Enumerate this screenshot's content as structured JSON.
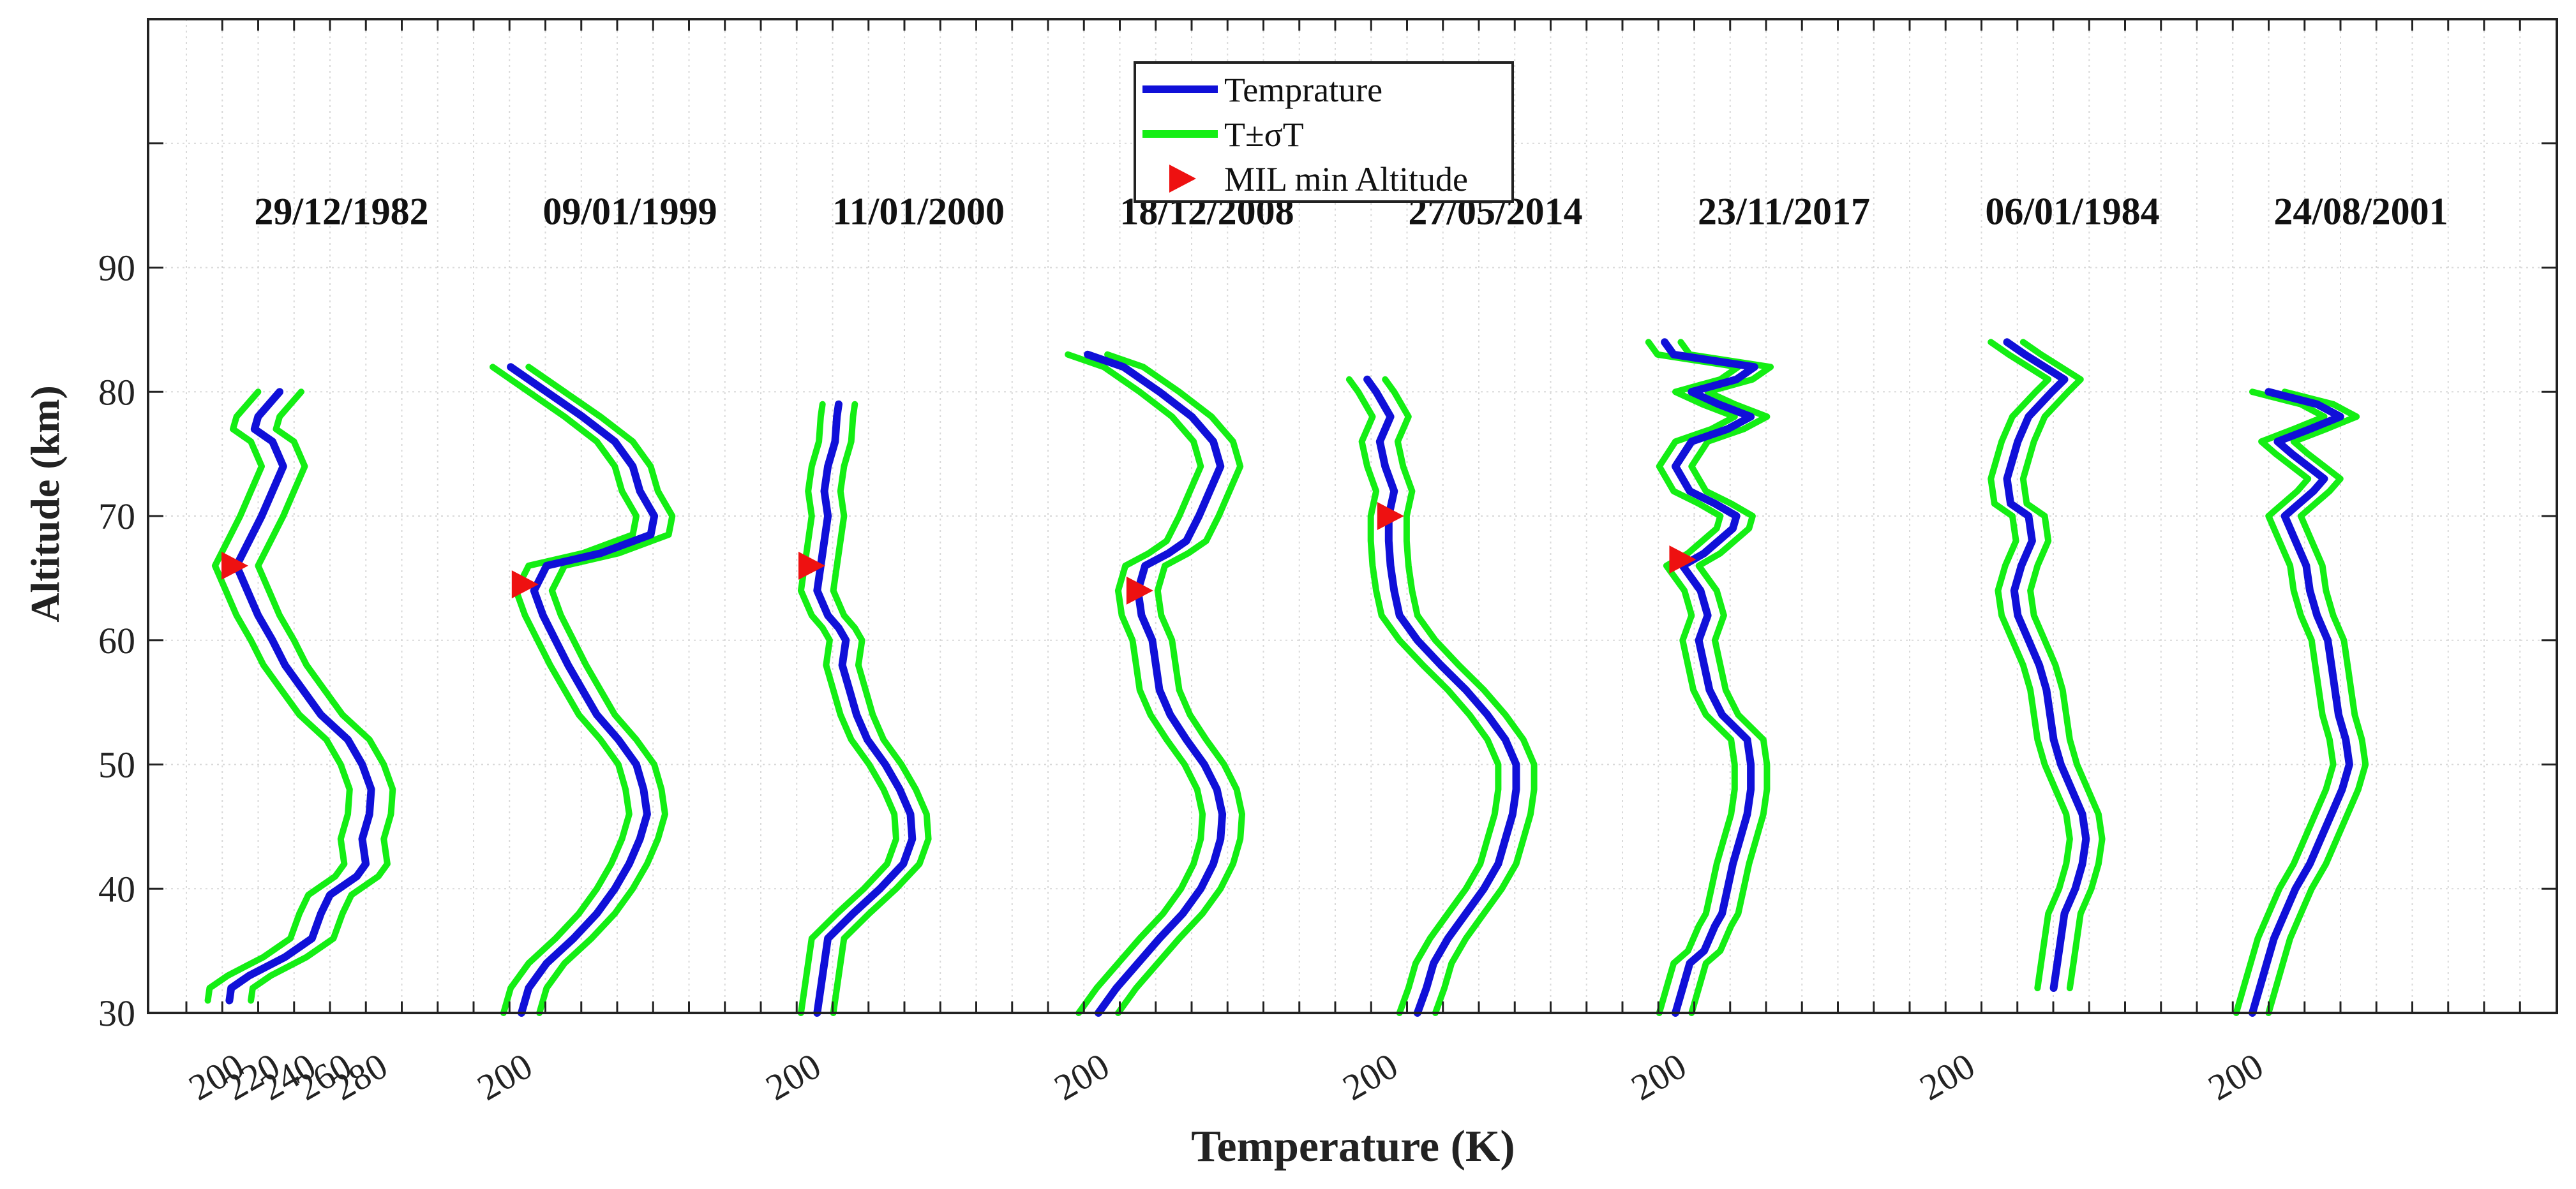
{
  "chart_data": {
    "type": "line",
    "xlabel": "Temperature (K)",
    "ylabel": "Altitude (km)",
    "ylim": [
      30,
      110
    ],
    "yticks": [
      30,
      40,
      50,
      60,
      70,
      80,
      90
    ],
    "panel_xlim": [
      180,
      340
    ],
    "first_panel_xticks": [
      200,
      220,
      240,
      260,
      280
    ],
    "legend": {
      "position": "top-center",
      "entries": [
        {
          "label": "Temprature",
          "kind": "line",
          "color": "#1010d8"
        },
        {
          "label": "T±σT",
          "kind": "line",
          "color": "#14ee14"
        },
        {
          "label": "MIL min Altitude",
          "kind": "marker",
          "color": "#ee1111"
        }
      ]
    },
    "colors": {
      "temperature": "#1010d8",
      "sigma": "#14ee14",
      "marker": "#ee1111",
      "grid": "#d9d9d9"
    },
    "panels": [
      {
        "date": "29/12/1982",
        "sigma_width": 12,
        "mil": [
          196,
          66
        ],
        "profile": [
          [
            194,
            31
          ],
          [
            195,
            32
          ],
          [
            205,
            33
          ],
          [
            225,
            34.5
          ],
          [
            240,
            36
          ],
          [
            245,
            38
          ],
          [
            250,
            39.5
          ],
          [
            265,
            41
          ],
          [
            270,
            42
          ],
          [
            268,
            44
          ],
          [
            272,
            46
          ],
          [
            273,
            48
          ],
          [
            268,
            50
          ],
          [
            260,
            52
          ],
          [
            245,
            54
          ],
          [
            235,
            56
          ],
          [
            225,
            58
          ],
          [
            218,
            60
          ],
          [
            210,
            62
          ],
          [
            204,
            64
          ],
          [
            198,
            66
          ],
          [
            205,
            68
          ],
          [
            212,
            70
          ],
          [
            218,
            72
          ],
          [
            224,
            74
          ],
          [
            218,
            76
          ],
          [
            208,
            77
          ],
          [
            210,
            78
          ],
          [
            222,
            80
          ]
        ]
      },
      {
        "date": "09/01/1999",
        "sigma_width": 10,
        "mil": [
          197,
          64.5
        ],
        "profile": [
          [
            196,
            30
          ],
          [
            200,
            32
          ],
          [
            210,
            34
          ],
          [
            225,
            36
          ],
          [
            238,
            38
          ],
          [
            248,
            40
          ],
          [
            256,
            42
          ],
          [
            262,
            44
          ],
          [
            266,
            46
          ],
          [
            264,
            48
          ],
          [
            260,
            50
          ],
          [
            250,
            52
          ],
          [
            238,
            54
          ],
          [
            230,
            56
          ],
          [
            222,
            58
          ],
          [
            215,
            60
          ],
          [
            208,
            62
          ],
          [
            203,
            64
          ],
          [
            210,
            66
          ],
          [
            240,
            67
          ],
          [
            268,
            68.5
          ],
          [
            270,
            70
          ],
          [
            262,
            72
          ],
          [
            258,
            74
          ],
          [
            248,
            76
          ],
          [
            230,
            78
          ],
          [
            210,
            80
          ],
          [
            190,
            82
          ]
        ]
      },
      {
        "date": "11/01/2000",
        "sigma_width": 9,
        "mil": [
          196,
          66
        ],
        "profile": [
          [
            200,
            30
          ],
          [
            202,
            32
          ],
          [
            204,
            34
          ],
          [
            206,
            36
          ],
          [
            220,
            38
          ],
          [
            235,
            40
          ],
          [
            248,
            42
          ],
          [
            253,
            44
          ],
          [
            252,
            46
          ],
          [
            246,
            48
          ],
          [
            238,
            50
          ],
          [
            228,
            52
          ],
          [
            222,
            54
          ],
          [
            218,
            56
          ],
          [
            214,
            58
          ],
          [
            216,
            60
          ],
          [
            212,
            61
          ],
          [
            206,
            62
          ],
          [
            200,
            64
          ],
          [
            202,
            66
          ],
          [
            204,
            68
          ],
          [
            206,
            70
          ],
          [
            204,
            72
          ],
          [
            206,
            74
          ],
          [
            210,
            76
          ],
          [
            211,
            78
          ],
          [
            212,
            79
          ]
        ]
      },
      {
        "date": "18/12/2008",
        "sigma_width": 11,
        "mil": [
          218,
          64
        ],
        "profile": [
          [
            196,
            30
          ],
          [
            206,
            32
          ],
          [
            218,
            34
          ],
          [
            230,
            36
          ],
          [
            243,
            38
          ],
          [
            253,
            40
          ],
          [
            260,
            42
          ],
          [
            264,
            44
          ],
          [
            265,
            46
          ],
          [
            262,
            48
          ],
          [
            255,
            50
          ],
          [
            245,
            52
          ],
          [
            236,
            54
          ],
          [
            230,
            56
          ],
          [
            228,
            58
          ],
          [
            226,
            60
          ],
          [
            220,
            62
          ],
          [
            218,
            64
          ],
          [
            222,
            66
          ],
          [
            235,
            67
          ],
          [
            245,
            68
          ],
          [
            252,
            70
          ],
          [
            258,
            72
          ],
          [
            264,
            74
          ],
          [
            260,
            76
          ],
          [
            248,
            78
          ],
          [
            230,
            80
          ],
          [
            210,
            82
          ],
          [
            190,
            83
          ]
        ]
      },
      {
        "date": "27/05/2014",
        "sigma_width": 10,
        "mil": [
          197,
          70
        ],
        "profile": [
          [
            213,
            30
          ],
          [
            218,
            32
          ],
          [
            222,
            34
          ],
          [
            230,
            36
          ],
          [
            240,
            38
          ],
          [
            250,
            40
          ],
          [
            258,
            42
          ],
          [
            262,
            44
          ],
          [
            266,
            46
          ],
          [
            268,
            48
          ],
          [
            268,
            50
          ],
          [
            262,
            52
          ],
          [
            252,
            54
          ],
          [
            240,
            56
          ],
          [
            226,
            58
          ],
          [
            213,
            60
          ],
          [
            203,
            62
          ],
          [
            200,
            64
          ],
          [
            198,
            66
          ],
          [
            197,
            68
          ],
          [
            197,
            70
          ],
          [
            200,
            72
          ],
          [
            195,
            74
          ],
          [
            192,
            76
          ],
          [
            198,
            78
          ],
          [
            190,
            80
          ],
          [
            185,
            81
          ]
        ]
      },
      {
        "date": "23/11/2017",
        "sigma_width": 9,
        "mil": [
          199,
          66.5
        ],
        "profile": [
          [
            196,
            30
          ],
          [
            200,
            32
          ],
          [
            204,
            34
          ],
          [
            212,
            35
          ],
          [
            218,
            37
          ],
          [
            222,
            38
          ],
          [
            225,
            40
          ],
          [
            228,
            42
          ],
          [
            232,
            44
          ],
          [
            236,
            46
          ],
          [
            238,
            48
          ],
          [
            238,
            50
          ],
          [
            236,
            52
          ],
          [
            222,
            54
          ],
          [
            215,
            56
          ],
          [
            212,
            58
          ],
          [
            209,
            60
          ],
          [
            214,
            62
          ],
          [
            210,
            64
          ],
          [
            200,
            66
          ],
          [
            212,
            67
          ],
          [
            228,
            69
          ],
          [
            230,
            70
          ],
          [
            218,
            71
          ],
          [
            204,
            72
          ],
          [
            196,
            74
          ],
          [
            205,
            76
          ],
          [
            225,
            77
          ],
          [
            238,
            78
          ],
          [
            220,
            79
          ],
          [
            205,
            80
          ],
          [
            230,
            81
          ],
          [
            240,
            82
          ],
          [
            195,
            83
          ],
          [
            190,
            84
          ]
        ]
      },
      {
        "date": "06/01/1984",
        "sigma_width": 9,
        "mil": null,
        "profile": [
          [
            246,
            32
          ],
          [
            248,
            34
          ],
          [
            252,
            38
          ],
          [
            258,
            40
          ],
          [
            262,
            42
          ],
          [
            264,
            44
          ],
          [
            262,
            46
          ],
          [
            256,
            48
          ],
          [
            250,
            50
          ],
          [
            246,
            52
          ],
          [
            244,
            54
          ],
          [
            242,
            56
          ],
          [
            238,
            58
          ],
          [
            232,
            60
          ],
          [
            226,
            62
          ],
          [
            224,
            64
          ],
          [
            228,
            66
          ],
          [
            234,
            68
          ],
          [
            232,
            70
          ],
          [
            222,
            71
          ],
          [
            220,
            73
          ],
          [
            226,
            76
          ],
          [
            232,
            78
          ],
          [
            245,
            80
          ],
          [
            252,
            81
          ],
          [
            230,
            83
          ],
          [
            220,
            84
          ]
        ]
      },
      {
        "date": "24/08/2001",
        "sigma_width": 9,
        "mil": null,
        "profile": [
          [
            196,
            30
          ],
          [
            200,
            32
          ],
          [
            204,
            34
          ],
          [
            208,
            36
          ],
          [
            214,
            38
          ],
          [
            220,
            40
          ],
          [
            228,
            42
          ],
          [
            234,
            44
          ],
          [
            240,
            46
          ],
          [
            246,
            48
          ],
          [
            250,
            50
          ],
          [
            248,
            52
          ],
          [
            244,
            54
          ],
          [
            242,
            56
          ],
          [
            240,
            58
          ],
          [
            238,
            60
          ],
          [
            232,
            62
          ],
          [
            228,
            64
          ],
          [
            226,
            66
          ],
          [
            220,
            68
          ],
          [
            214,
            70
          ],
          [
            230,
            72
          ],
          [
            236,
            73
          ],
          [
            218,
            75
          ],
          [
            210,
            76
          ],
          [
            228,
            77
          ],
          [
            245,
            78
          ],
          [
            232,
            79
          ],
          [
            205,
            80
          ]
        ]
      }
    ]
  }
}
